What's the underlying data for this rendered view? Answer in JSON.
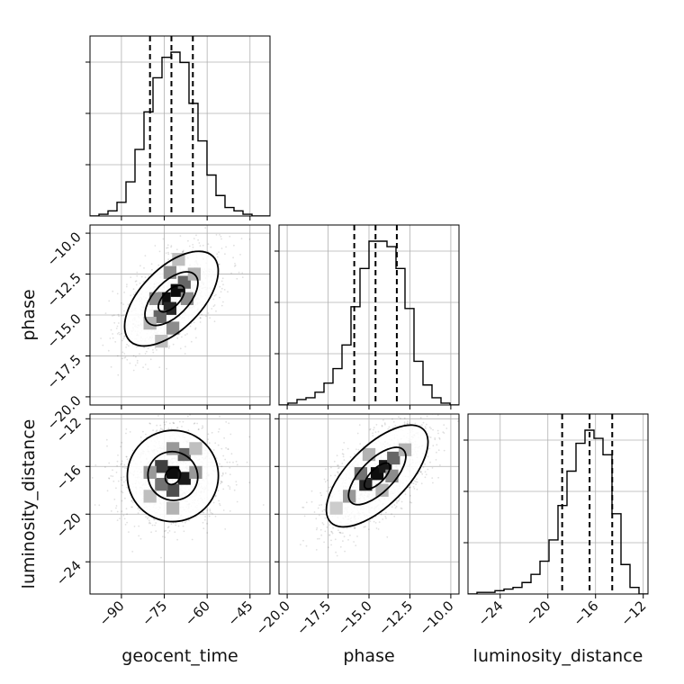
{
  "chart_data": {
    "type": "corner",
    "parameters": [
      "geocent_time",
      "phase",
      "luminosity_distance"
    ],
    "ranges": {
      "geocent_time": [
        -101,
        -38
      ],
      "phase": [
        -20.5,
        -9.5
      ],
      "luminosity_distance": [
        -26.7,
        -11.6
      ]
    },
    "ticks": {
      "geocent_time": {
        "values": [
          -90,
          -75,
          -60,
          -45
        ],
        "labels": [
          "−90",
          "−75",
          "−60",
          "−45"
        ]
      },
      "phase": {
        "values": [
          -20.0,
          -17.5,
          -15.0,
          -12.5,
          -10.0
        ],
        "labels": [
          "−20.0",
          "−17.5",
          "−15.0",
          "−12.5",
          "−10.0"
        ]
      },
      "luminosity_distance": {
        "values": [
          -24,
          -20,
          -16,
          -12
        ],
        "labels": [
          "−24",
          "−20",
          "−16",
          "−12"
        ]
      }
    },
    "quantiles": {
      "geocent_time": [
        -80,
        -72.5,
        -65
      ],
      "phase": [
        -15.9,
        -14.6,
        -13.3
      ],
      "luminosity_distance": [
        -18.8,
        -16.5,
        -14.6
      ]
    },
    "histograms": {
      "geocent_time": {
        "edges": [
          -101,
          -97.85,
          -94.7,
          -91.55,
          -88.4,
          -85.25,
          -82.1,
          -78.95,
          -75.8,
          -72.65,
          -69.5,
          -66.35,
          -63.2,
          -60.05,
          -56.9,
          -53.75,
          -50.6,
          -47.45,
          -44.3,
          -41.15,
          -38
        ],
        "counts": [
          0.0,
          0.01,
          0.03,
          0.08,
          0.2,
          0.39,
          0.61,
          0.81,
          0.93,
          0.96,
          0.9,
          0.66,
          0.44,
          0.24,
          0.12,
          0.05,
          0.03,
          0.01,
          0.0,
          0.0
        ]
      },
      "phase": {
        "edges": [
          -20.5,
          -19.95,
          -19.4,
          -18.85,
          -18.3,
          -17.75,
          -17.2,
          -16.65,
          -16.1,
          -15.55,
          -15.0,
          -14.45,
          -13.9,
          -13.35,
          -12.8,
          -12.25,
          -11.7,
          -11.15,
          -10.6,
          -10.05,
          -9.5
        ],
        "counts": [
          0.0,
          0.01,
          0.03,
          0.04,
          0.07,
          0.12,
          0.2,
          0.33,
          0.54,
          0.75,
          0.9,
          0.9,
          0.87,
          0.75,
          0.53,
          0.24,
          0.11,
          0.04,
          0.01,
          0.0
        ]
      },
      "luminosity_distance": {
        "edges": [
          -26.7,
          -25.945,
          -25.19,
          -24.435,
          -23.68,
          -22.925,
          -22.17,
          -21.415,
          -20.66,
          -19.905,
          -19.15,
          -18.395,
          -17.64,
          -16.885,
          -16.13,
          -15.375,
          -14.62,
          -13.865,
          -13.11,
          -12.355,
          -11.6
        ],
        "counts": [
          0.0,
          0.01,
          0.01,
          0.02,
          0.03,
          0.04,
          0.07,
          0.12,
          0.2,
          0.33,
          0.54,
          0.75,
          0.92,
          1.0,
          0.95,
          0.85,
          0.49,
          0.18,
          0.04,
          0.0
        ]
      }
    },
    "posteriors": [
      {
        "x": "geocent_time",
        "y": "phase",
        "mean": [
          -72.5,
          -14.0
        ],
        "std": [
          8.5,
          1.5
        ],
        "corr": 0.55,
        "density_cells": [
          [
            -75,
            -14,
            0.95
          ],
          [
            -70.5,
            -13.5,
            0.95
          ],
          [
            -73,
            -14.6,
            0.85
          ],
          [
            -76.5,
            -15.1,
            0.6
          ],
          [
            -68,
            -13,
            0.6
          ],
          [
            -78,
            -14,
            0.45
          ],
          [
            -67,
            -14,
            0.45
          ],
          [
            -73,
            -12.4,
            0.45
          ],
          [
            -72,
            -15.8,
            0.45
          ],
          [
            -80,
            -15.5,
            0.3
          ],
          [
            -64.5,
            -12.5,
            0.3
          ],
          [
            -70,
            -11.6,
            0.25
          ],
          [
            -76,
            -16.6,
            0.25
          ]
        ],
        "contours": [
          {
            "rx": 0.55,
            "ry": 0.5
          },
          {
            "rx": 1.1,
            "ry": 1.05
          },
          {
            "rx": 1.95,
            "ry": 1.85
          }
        ]
      },
      {
        "x": "geocent_time",
        "y": "luminosity_distance",
        "mean": [
          -72.0,
          -16.8
        ],
        "std": [
          8.5,
          2.1
        ],
        "corr": 0.05,
        "density_cells": [
          [
            -72,
            -16.5,
            0.95
          ],
          [
            -68,
            -17,
            0.9
          ],
          [
            -76,
            -16,
            0.75
          ],
          [
            -72,
            -18,
            0.7
          ],
          [
            -68,
            -15,
            0.6
          ],
          [
            -76,
            -17.5,
            0.55
          ],
          [
            -80,
            -16.5,
            0.4
          ],
          [
            -64,
            -16.5,
            0.4
          ],
          [
            -72,
            -14.5,
            0.4
          ],
          [
            -72,
            -19.5,
            0.3
          ],
          [
            -80,
            -18.5,
            0.25
          ],
          [
            -64,
            -14.5,
            0.25
          ]
        ],
        "contours": [
          {
            "rx": 0.35,
            "ry": 0.3
          },
          {
            "rx": 0.95,
            "ry": 1.05
          },
          {
            "rx": 1.8,
            "ry": 1.9
          }
        ]
      },
      {
        "x": "phase",
        "y": "luminosity_distance",
        "mean": [
          -14.5,
          -16.8
        ],
        "std": [
          1.6,
          2.2
        ],
        "corr": 0.65,
        "density_cells": [
          [
            -14.5,
            -16.6,
            0.95
          ],
          [
            -14,
            -16,
            0.9
          ],
          [
            -15.2,
            -17.5,
            0.85
          ],
          [
            -13.5,
            -15.3,
            0.6
          ],
          [
            -15.5,
            -16.6,
            0.55
          ],
          [
            -13.6,
            -16.8,
            0.45
          ],
          [
            -16.2,
            -18.5,
            0.4
          ],
          [
            -12.8,
            -14.6,
            0.3
          ],
          [
            -15,
            -15,
            0.3
          ],
          [
            -14.2,
            -18,
            0.3
          ],
          [
            -17,
            -19.5,
            0.2
          ]
        ],
        "contours": [
          {
            "rx": 0.5,
            "ry": 0.45
          },
          {
            "rx": 1.1,
            "ry": 1.05
          },
          {
            "rx": 1.95,
            "ry": 1.9
          }
        ]
      }
    ]
  }
}
